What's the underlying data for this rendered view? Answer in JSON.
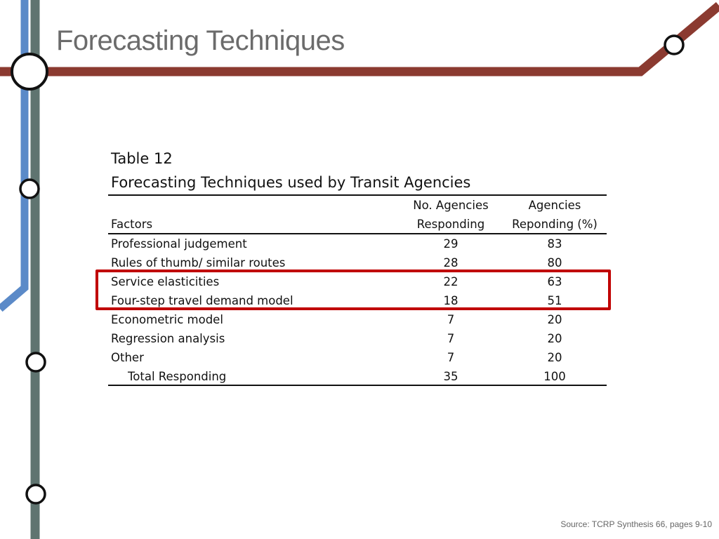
{
  "slide": {
    "title": "Forecasting Techniques",
    "source": "Source: TCRP Synthesis 66, pages 9-10"
  },
  "table": {
    "caption_line1": "Table 12",
    "caption_line2": "Forecasting Techniques used by Transit Agencies",
    "headers": {
      "factors": "Factors",
      "agencies_line1": "No. Agencies",
      "agencies_line2": "Responding",
      "percent_line1": "Agencies",
      "percent_line2": "Reponding (%)"
    },
    "rows": [
      {
        "factor": "Professional judgement",
        "agencies": "29",
        "percent": "83"
      },
      {
        "factor": "Rules of thumb/ similar routes",
        "agencies": "28",
        "percent": "80"
      },
      {
        "factor": "Service elasticities",
        "agencies": "22",
        "percent": "63"
      },
      {
        "factor": "Four-step travel demand model",
        "agencies": "18",
        "percent": "51"
      },
      {
        "factor": "Econometric model",
        "agencies": "7",
        "percent": "20"
      },
      {
        "factor": "Regression analysis",
        "agencies": "7",
        "percent": "20"
      },
      {
        "factor": "Other",
        "agencies": "7",
        "percent": "20"
      }
    ],
    "total": {
      "factor": "Total Responding",
      "agencies": "35",
      "percent": "100"
    }
  },
  "colors": {
    "red_line": "#8b3a30",
    "blue_line": "#5b8ac8",
    "gray_line": "#5f7470",
    "highlight": "#c00000",
    "title": "#6b6b6b"
  }
}
